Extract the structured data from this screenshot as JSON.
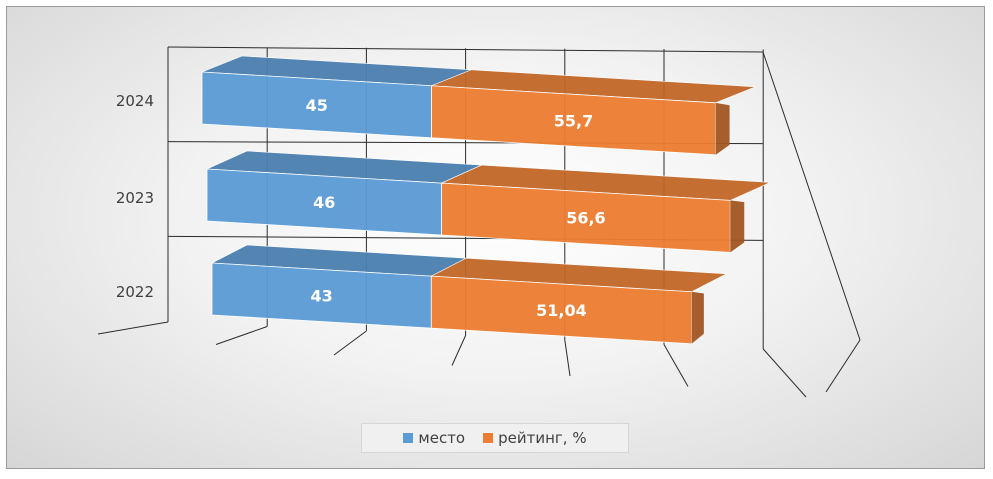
{
  "chart_data": {
    "type": "bar",
    "orientation": "horizontal-stacked-3d",
    "categories": [
      "2022",
      "2023",
      "2024"
    ],
    "series": [
      {
        "name": "место",
        "values": [
          43,
          46,
          45
        ],
        "labels": [
          "43",
          "46",
          "45"
        ],
        "color": "#5b9bd5"
      },
      {
        "name": "рейтинг, %",
        "values": [
          51.04,
          56.6,
          55.7
        ],
        "labels": [
          "51,04",
          "56,6",
          "55,7"
        ],
        "color": "#ed7d31"
      }
    ],
    "title": "",
    "xlabel": "",
    "ylabel": "",
    "xlim": [
      0,
      120
    ],
    "grid": true,
    "legend_position": "bottom"
  }
}
